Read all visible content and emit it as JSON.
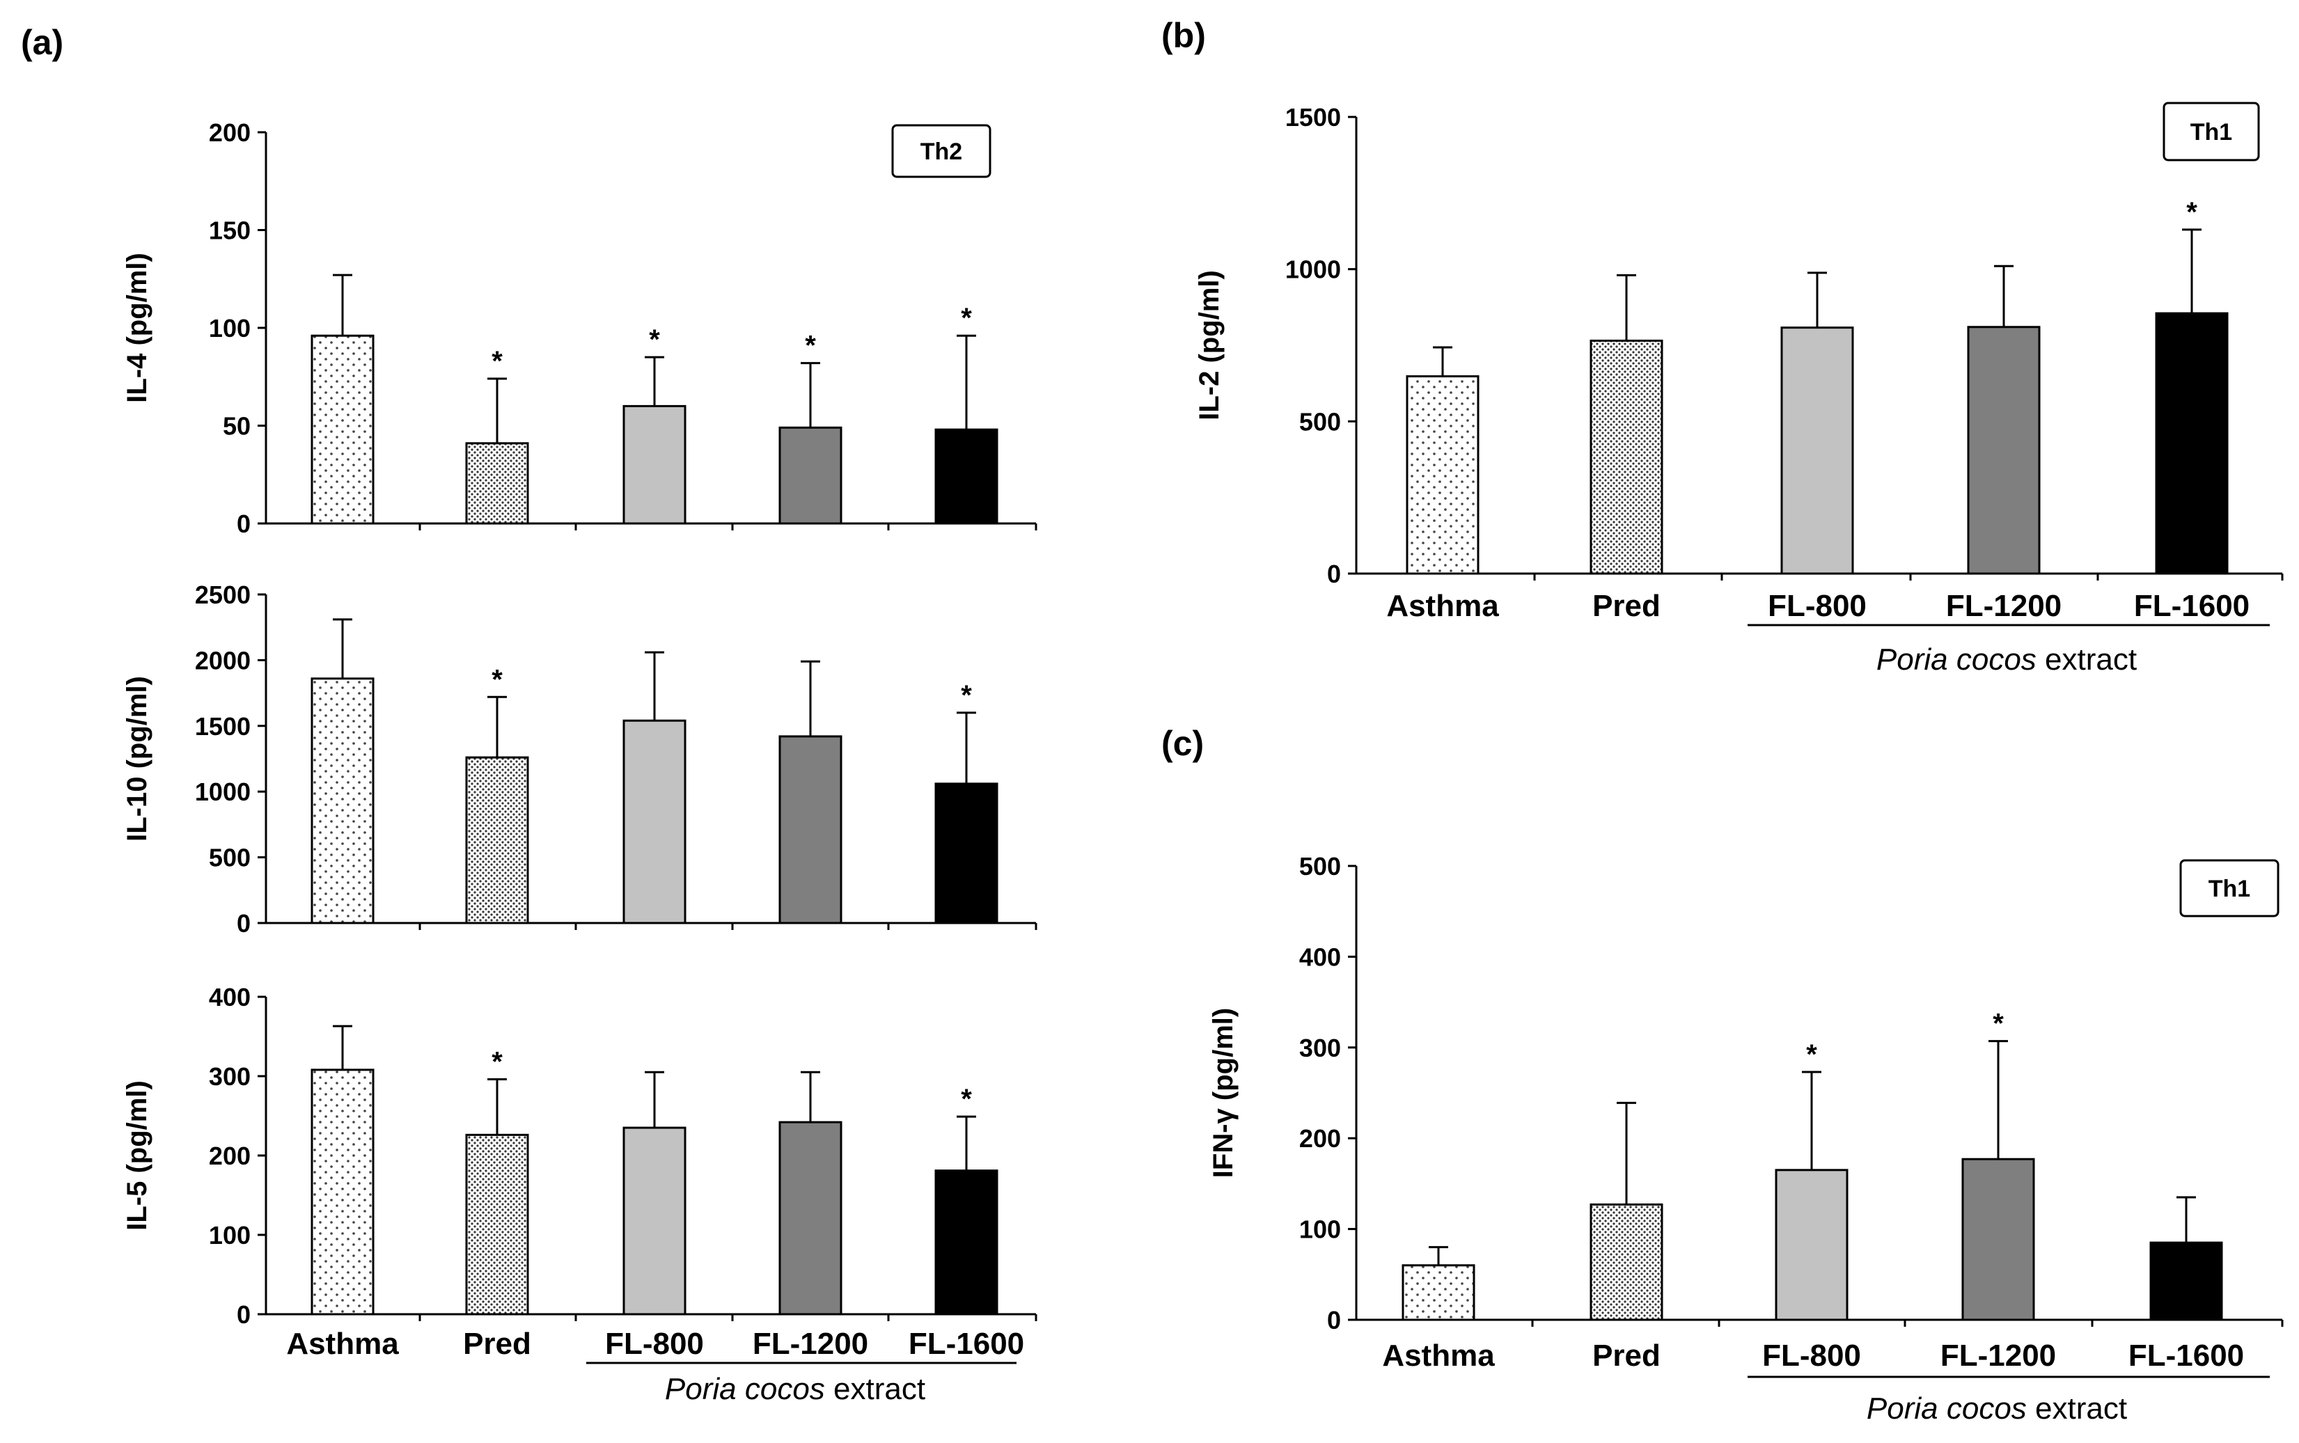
{
  "figure": {
    "panel_labels": {
      "a": "(a)",
      "b": "(b)",
      "c": "(c)"
    },
    "group_label": {
      "italic": "Poria cocos",
      "rest": " extract"
    }
  },
  "colors": {
    "asthma": "#ffffff",
    "pred": "#d8d8d8",
    "fl800": "#c2c2c2",
    "fl1200": "#7f7f7f",
    "fl1600": "#000000",
    "axis": "#000000",
    "star": "#1a3a5a"
  },
  "chart_data": [
    {
      "panel": "a",
      "subplot": "top",
      "type": "bar",
      "categories": [
        "Asthma",
        "Pred",
        "FL-800",
        "FL-1200",
        "FL-1600"
      ],
      "values": [
        96,
        41,
        60,
        49,
        48
      ],
      "errors": [
        31,
        33,
        25,
        33,
        48
      ],
      "significant": [
        false,
        true,
        true,
        true,
        true
      ],
      "ylabel": "IL-4 (pg/ml)",
      "ylim": [
        0,
        200
      ],
      "yticks": [
        "0",
        "50",
        "100",
        "150",
        "200"
      ],
      "legend": "Th2",
      "star": "*"
    },
    {
      "panel": "a",
      "subplot": "middle",
      "type": "bar",
      "categories": [
        "Asthma",
        "Pred",
        "FL-800",
        "FL-1200",
        "FL-1600"
      ],
      "values": [
        1860,
        1260,
        1540,
        1420,
        1060
      ],
      "errors": [
        450,
        460,
        520,
        570,
        540
      ],
      "significant": [
        false,
        true,
        false,
        false,
        true
      ],
      "ylabel": "IL-10 (pg/ml)",
      "ylim": [
        0,
        2500
      ],
      "yticks": [
        "0",
        "500",
        "1000",
        "1500",
        "2000",
        "2500"
      ],
      "star": "*"
    },
    {
      "panel": "a",
      "subplot": "bottom",
      "type": "bar",
      "categories": [
        "Asthma",
        "Pred",
        "FL-800",
        "FL-1200",
        "FL-1600"
      ],
      "values": [
        308,
        226,
        235,
        242,
        181
      ],
      "errors": [
        55,
        70,
        70,
        63,
        68
      ],
      "significant": [
        false,
        true,
        false,
        false,
        true
      ],
      "ylabel": "IL-5 (pg/ml)",
      "ylim": [
        0,
        400
      ],
      "yticks": [
        "0",
        "100",
        "200",
        "300",
        "400"
      ],
      "star": "*"
    },
    {
      "panel": "b",
      "type": "bar",
      "categories": [
        "Asthma",
        "Pred",
        "FL-800",
        "FL-1200",
        "FL-1600"
      ],
      "values": [
        648,
        765,
        808,
        810,
        855
      ],
      "errors": [
        95,
        215,
        180,
        200,
        275
      ],
      "significant": [
        false,
        false,
        false,
        false,
        true
      ],
      "ylabel": "IL-2 (pg/ml)",
      "ylim": [
        0,
        1500
      ],
      "yticks": [
        "0",
        "500",
        "1000",
        "1500"
      ],
      "legend": "Th1",
      "star": "*"
    },
    {
      "panel": "c",
      "type": "bar",
      "categories": [
        "Asthma",
        "Pred",
        "FL-800",
        "FL-1200",
        "FL-1600"
      ],
      "values": [
        60,
        127,
        165,
        177,
        85
      ],
      "errors": [
        20,
        112,
        108,
        130,
        50
      ],
      "significant": [
        false,
        false,
        true,
        true,
        false
      ],
      "ylabel": "IFN-γ (pg/ml)",
      "ylim": [
        0,
        500
      ],
      "yticks": [
        "0",
        "100",
        "200",
        "300",
        "400",
        "500"
      ],
      "legend": "Th1",
      "star": "*"
    }
  ]
}
